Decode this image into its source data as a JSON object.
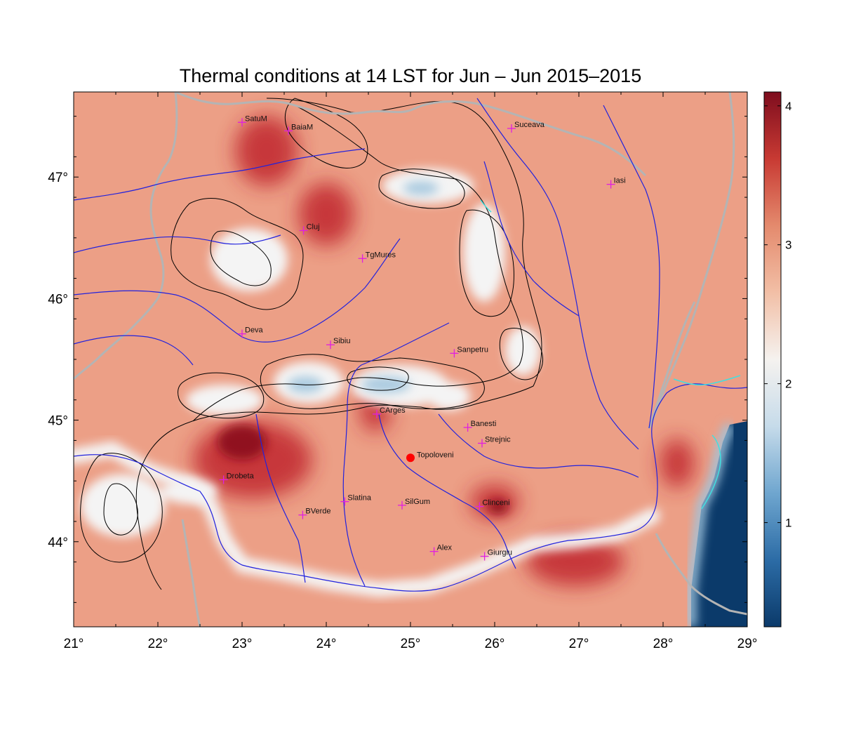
{
  "title": "Thermal conditions at 14 LST for Jun – Jun  2015–2015",
  "map": {
    "lon_range": [
      21,
      29
    ],
    "lat_range": [
      43.3,
      47.7
    ],
    "x_ticks": [
      {
        "value": 21,
        "label": "21°"
      },
      {
        "value": 22,
        "label": "22°"
      },
      {
        "value": 23,
        "label": "23°"
      },
      {
        "value": 24,
        "label": "24°"
      },
      {
        "value": 25,
        "label": "25°"
      },
      {
        "value": 26,
        "label": "26°"
      },
      {
        "value": 27,
        "label": "27°"
      },
      {
        "value": 28,
        "label": "28°"
      },
      {
        "value": 29,
        "label": "29°"
      }
    ],
    "y_ticks": [
      {
        "value": 44,
        "label": "44°"
      },
      {
        "value": 45,
        "label": "45°"
      },
      {
        "value": 46,
        "label": "46°"
      },
      {
        "value": 47,
        "label": "47°"
      }
    ],
    "colors": {
      "warm_base": "#ec9f86",
      "hot": "#c1272d",
      "very_hot": "#8b0f1c",
      "cool": "#f4f4f4",
      "cold": "#9fc4dd",
      "sea": "#0b3a6a",
      "river": "#2222dd",
      "border": "#b4b4b4",
      "contour": "#000000",
      "marker": "#e020e0",
      "highlight": "#ff0000",
      "lake": "#40e0e0"
    }
  },
  "stations": [
    {
      "name": "SatuM",
      "lon": 23.0,
      "lat": 47.45
    },
    {
      "name": "BaiaM",
      "lon": 23.55,
      "lat": 47.38
    },
    {
      "name": "Suceava",
      "lon": 26.2,
      "lat": 47.4
    },
    {
      "name": "Iasi",
      "lon": 27.38,
      "lat": 46.94
    },
    {
      "name": "Cluj",
      "lon": 23.73,
      "lat": 46.56
    },
    {
      "name": "TgMures",
      "lon": 24.43,
      "lat": 46.33
    },
    {
      "name": "Deva",
      "lon": 23.0,
      "lat": 45.71
    },
    {
      "name": "Sibiu",
      "lon": 24.05,
      "lat": 45.62
    },
    {
      "name": "Sanpetru",
      "lon": 25.52,
      "lat": 45.55
    },
    {
      "name": "CArges",
      "lon": 24.6,
      "lat": 45.05
    },
    {
      "name": "Banesti",
      "lon": 25.68,
      "lat": 44.94
    },
    {
      "name": "Strejnic",
      "lon": 25.85,
      "lat": 44.81
    },
    {
      "name": "Drobeta",
      "lon": 22.78,
      "lat": 44.51
    },
    {
      "name": "Slatina",
      "lon": 24.22,
      "lat": 44.33
    },
    {
      "name": "SilGum",
      "lon": 24.9,
      "lat": 44.3
    },
    {
      "name": "BVerde",
      "lon": 23.72,
      "lat": 44.22
    },
    {
      "name": "Clinceni",
      "lon": 25.82,
      "lat": 44.29
    },
    {
      "name": "Alex",
      "lon": 25.28,
      "lat": 43.92
    },
    {
      "name": "Giurgiu",
      "lon": 25.88,
      "lat": 43.88
    }
  ],
  "highlight_station": {
    "name": "Topoloveni",
    "lon": 25.0,
    "lat": 44.69
  },
  "colorbar": {
    "range": [
      0.25,
      4.1
    ],
    "ticks": [
      {
        "value": 1,
        "label": "1"
      },
      {
        "value": 2,
        "label": "2"
      },
      {
        "value": 3,
        "label": "3"
      },
      {
        "value": 4,
        "label": "4"
      }
    ],
    "colormap": [
      "#0b3a6a",
      "#2c6ca6",
      "#6fa6cf",
      "#c6dbea",
      "#f5f2ef",
      "#f2bfa6",
      "#e48a6d",
      "#c83a33",
      "#7e0d1e"
    ]
  }
}
